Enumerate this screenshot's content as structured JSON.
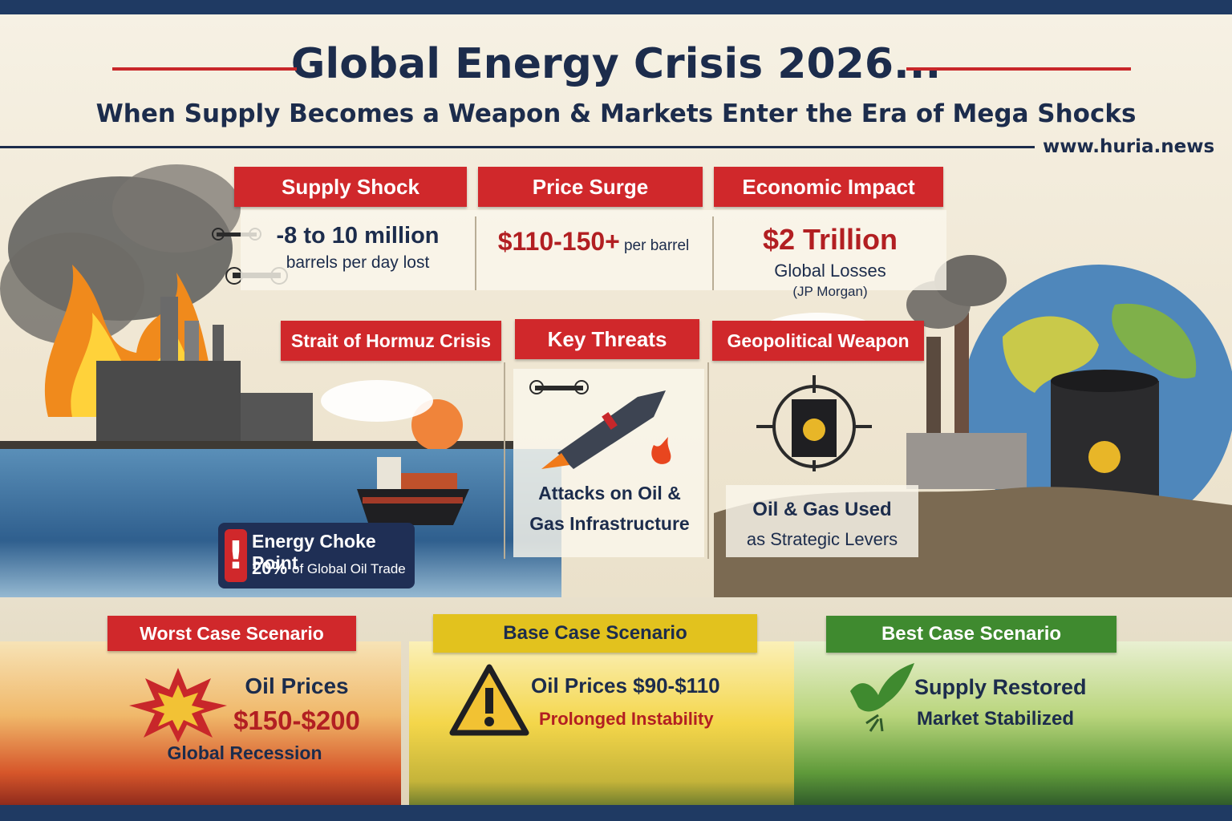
{
  "header": {
    "title": "Global Energy Crisis 2026...",
    "subtitle": "When Supply Becomes a Weapon & Markets Enter the Era of Mega Shocks",
    "website": "www.huria.news"
  },
  "stats": [
    {
      "label": "Supply Shock",
      "value": "-8 to 10 million",
      "caption": "barrels per day lost"
    },
    {
      "label": "Price Surge",
      "value": "$110-150+",
      "value_suffix": "per barrel"
    },
    {
      "label": "Economic Impact",
      "value": "$2 Trillion",
      "caption": "Global Losses",
      "source": "(JP Morgan)"
    }
  ],
  "threats": [
    {
      "label": "Strait of Hormuz Crisis"
    },
    {
      "label": "Key Threats",
      "caption_line1": "Attacks on Oil &",
      "caption_line2": "Gas Infrastructure"
    },
    {
      "label": "Geopolitical Weapon",
      "caption_line1": "Oil & Gas Used",
      "caption_line2": "as Strategic Levers"
    }
  ],
  "choke_point": {
    "title": "Energy Choke Point",
    "value": "20%",
    "caption": "of Global Oil Trade"
  },
  "scenarios": [
    {
      "label": "Worst Case Scenario",
      "line1": "Oil Prices",
      "line2": "$150-$200",
      "line3": "Global Recession",
      "color": "#d0282b"
    },
    {
      "label": "Base Case Scenario",
      "line1": "Oil Prices $90-$110",
      "line2": "Prolonged Instability",
      "color": "#e2c21e"
    },
    {
      "label": "Best Case Scenario",
      "line1": "Supply Restored",
      "line2": "Market Stabilized",
      "color": "#3f8a2f"
    }
  ],
  "colors": {
    "navy": "#1c2c4c",
    "red": "#d0282b",
    "accent_red_text": "#b21f22"
  }
}
